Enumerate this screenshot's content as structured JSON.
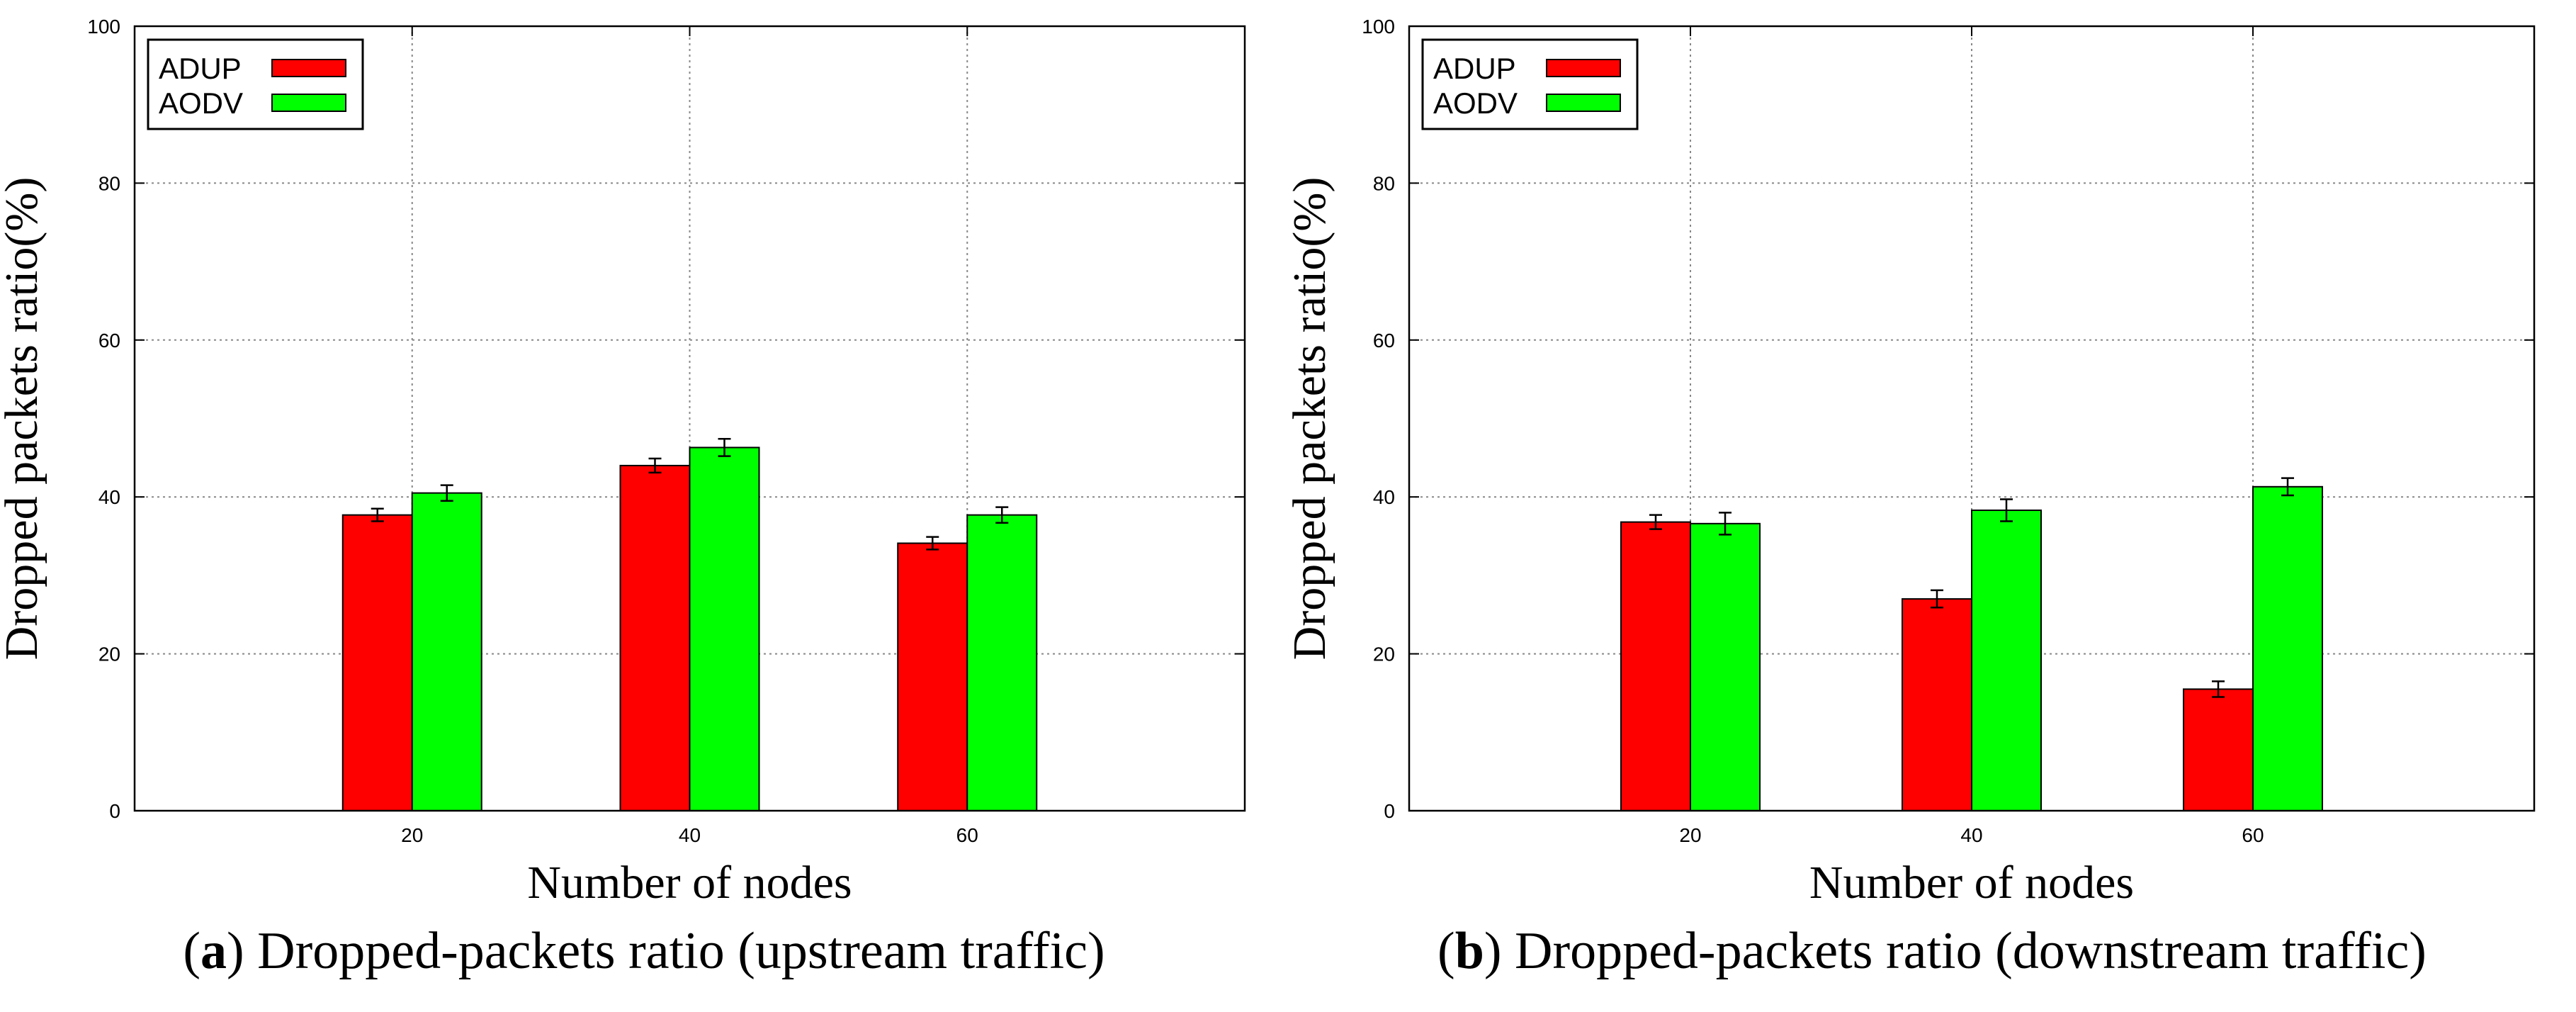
{
  "figures": [
    {
      "letter": "a",
      "caption_text": "Dropped-packets ratio (upstream traffic)",
      "chart_data": {
        "type": "bar",
        "title": "",
        "xlabel": "Number of nodes",
        "ylabel": "Dropped packets ratio(%)",
        "categories": [
          "20",
          "40",
          "60"
        ],
        "ylim": [
          0,
          100
        ],
        "yticks": [
          "0",
          "20",
          "40",
          "60",
          "80",
          "100"
        ],
        "grid": true,
        "legend_position": "top-left",
        "series": [
          {
            "name": "ADUP",
            "color": "#ff0000",
            "values": [
              37.7,
              44.0,
              34.1
            ],
            "errors": [
              0.8,
              0.9,
              0.8
            ]
          },
          {
            "name": "AODV",
            "color": "#00ff00",
            "values": [
              40.5,
              46.3,
              37.7
            ],
            "errors": [
              1.0,
              1.1,
              1.0
            ]
          }
        ]
      }
    },
    {
      "letter": "b",
      "caption_text": "Dropped-packets ratio (downstream traffic)",
      "chart_data": {
        "type": "bar",
        "title": "",
        "xlabel": "Number of nodes",
        "ylabel": "Dropped packets ratio(%)",
        "categories": [
          "20",
          "40",
          "60"
        ],
        "ylim": [
          0,
          100
        ],
        "yticks": [
          "0",
          "20",
          "40",
          "60",
          "80",
          "100"
        ],
        "grid": true,
        "legend_position": "top-left",
        "series": [
          {
            "name": "ADUP",
            "color": "#ff0000",
            "values": [
              36.8,
              27.0,
              15.5
            ],
            "errors": [
              0.9,
              1.1,
              1.0
            ]
          },
          {
            "name": "AODV",
            "color": "#00ff00",
            "values": [
              36.6,
              38.3,
              41.3
            ],
            "errors": [
              1.4,
              1.4,
              1.1
            ]
          }
        ]
      }
    }
  ]
}
